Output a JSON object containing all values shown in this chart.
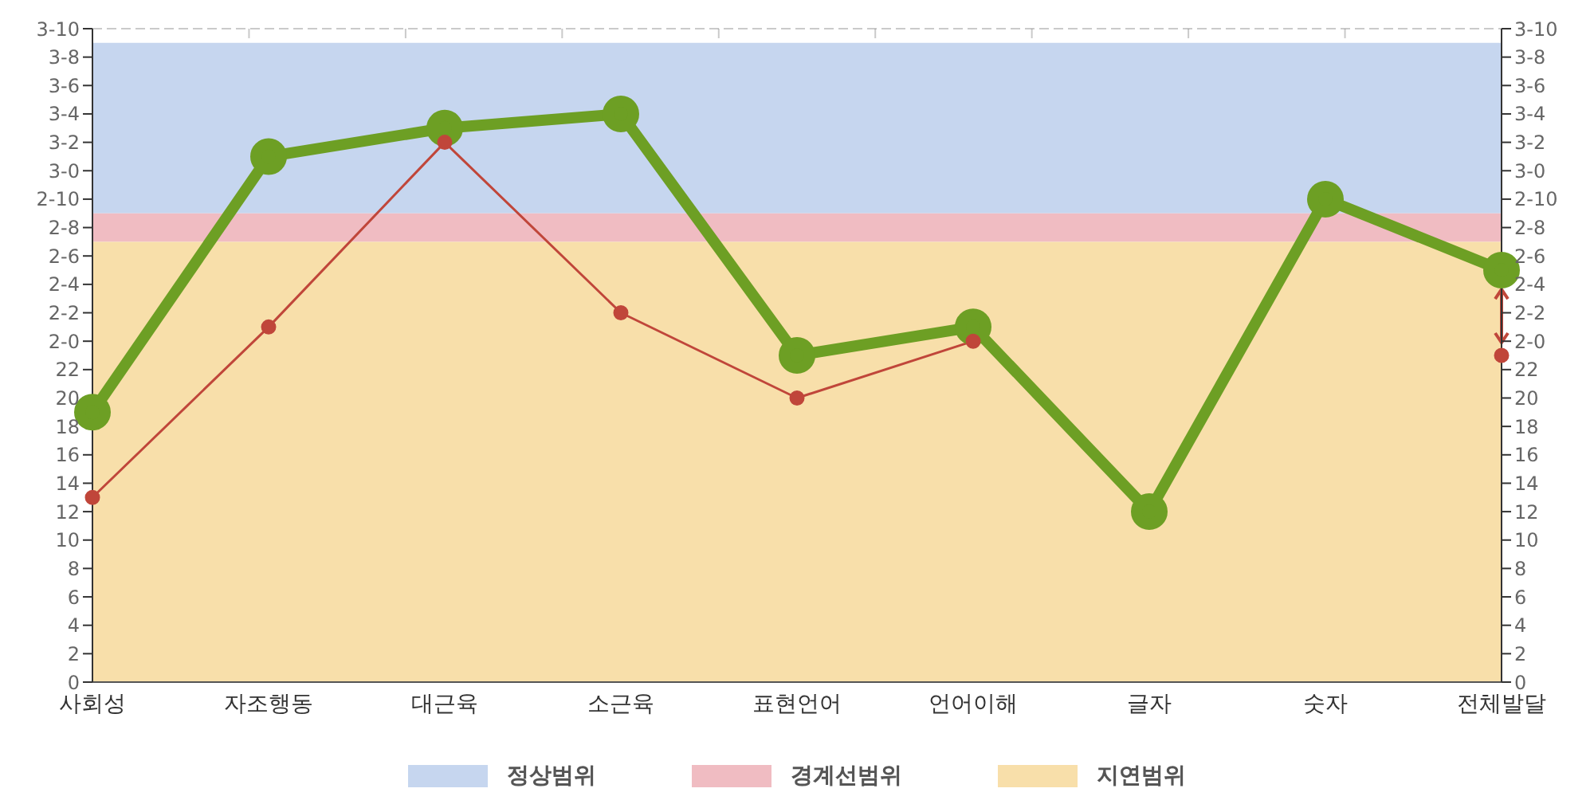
{
  "chart_data": {
    "type": "line",
    "categories": [
      "사회성",
      "자조행동",
      "대근육",
      "소근육",
      "표현언어",
      "언어이해",
      "글자",
      "숫자",
      "전체발달"
    ],
    "series": [
      {
        "color": "#6d9f24",
        "values": [
          19,
          37,
          39,
          40,
          23,
          25,
          12,
          34,
          29
        ]
      },
      {
        "color": "#c0463a",
        "values": [
          13,
          25,
          38,
          26,
          20,
          24,
          null,
          null,
          23
        ]
      }
    ],
    "ylim": [
      0,
      46
    ],
    "yticks": [
      0,
      2,
      4,
      6,
      8,
      10,
      12,
      14,
      16,
      18,
      20,
      22,
      {
        "value": 24,
        "label": "2-0"
      },
      {
        "value": 26,
        "label": "2-2"
      },
      {
        "value": 28,
        "label": "2-4"
      },
      {
        "value": 30,
        "label": "2-6"
      },
      {
        "value": 32,
        "label": "2-8"
      },
      {
        "value": 34,
        "label": "2-10"
      },
      {
        "value": 36,
        "label": "3-0"
      },
      {
        "value": 38,
        "label": "3-2"
      },
      {
        "value": 40,
        "label": "3-4"
      },
      {
        "value": 42,
        "label": "3-6"
      },
      {
        "value": 44,
        "label": "3-8"
      },
      {
        "value": 46,
        "label": "3-10"
      }
    ],
    "y2lim": [
      0,
      46
    ],
    "y2ticks": [
      0,
      2,
      4,
      6,
      8,
      10,
      12,
      14,
      16,
      18,
      20,
      22,
      {
        "value": 24,
        "label": "2-0"
      },
      {
        "value": 26,
        "label": "2-2"
      },
      {
        "value": 28,
        "label": "2-4"
      },
      {
        "value": 30,
        "label": "2-6"
      },
      {
        "value": 32,
        "label": "2-8"
      },
      {
        "value": 34,
        "label": "2-10"
      },
      {
        "value": 36,
        "label": "3-0"
      },
      {
        "value": 38,
        "label": "3-2"
      },
      {
        "value": 40,
        "label": "3-4"
      },
      {
        "value": 42,
        "label": "3-6"
      },
      {
        "value": 44,
        "label": "3-8"
      },
      {
        "value": 46,
        "label": "3-10"
      }
    ],
    "bands": [
      {
        "axis": "y",
        "from": 33,
        "to": 45,
        "label": "정상범위",
        "color": "#c6d6ef"
      },
      {
        "axis": "y",
        "from": 31,
        "to": 33,
        "label": "경계선범위",
        "color": "#f0bcc2"
      },
      {
        "axis": "y",
        "from": 0,
        "to": 31,
        "label": "지연범위",
        "color": "#f8dfaa"
      }
    ],
    "grid": true,
    "legend": "bottom",
    "marker": "circle"
  }
}
